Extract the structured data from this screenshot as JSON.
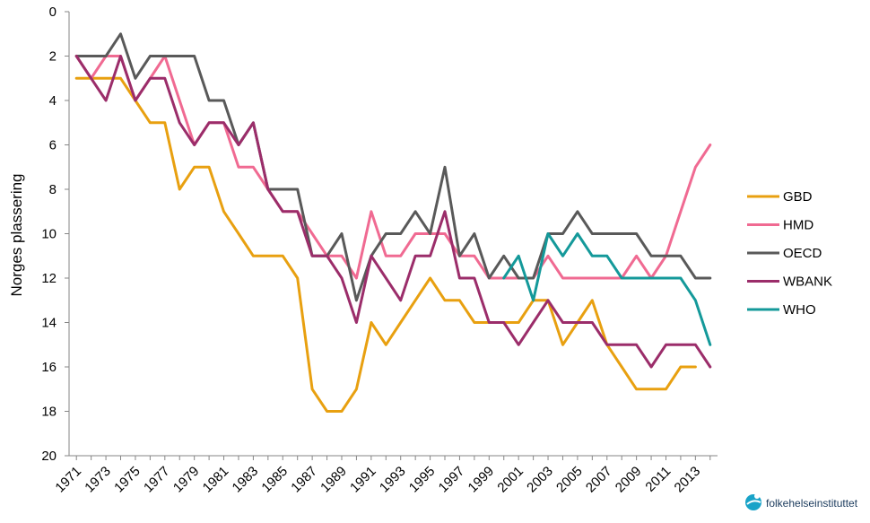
{
  "chart_data": {
    "type": "line",
    "ylabel": "Norges plassering",
    "xlabel": "",
    "y_inverted": true,
    "ylim": [
      0,
      20
    ],
    "yticks": [
      0,
      2,
      4,
      6,
      8,
      10,
      12,
      14,
      16,
      18,
      20
    ],
    "x": [
      1971,
      1972,
      1973,
      1974,
      1975,
      1976,
      1977,
      1978,
      1979,
      1980,
      1981,
      1982,
      1983,
      1984,
      1985,
      1986,
      1987,
      1988,
      1989,
      1990,
      1991,
      1992,
      1993,
      1994,
      1995,
      1996,
      1997,
      1998,
      1999,
      2000,
      2001,
      2002,
      2003,
      2004,
      2005,
      2006,
      2007,
      2008,
      2009,
      2010,
      2011,
      2012,
      2013,
      2014
    ],
    "xtick_labels": [
      "1971",
      "1973",
      "1975",
      "1977",
      "1979",
      "1981",
      "1983",
      "1985",
      "1987",
      "1989",
      "1991",
      "1993",
      "1995",
      "1997",
      "1999",
      "2001",
      "2003",
      "2005",
      "2007",
      "2009",
      "2011",
      "2013"
    ],
    "legend_position": "right",
    "series": [
      {
        "name": "GBD",
        "color": "#E8A010",
        "values": [
          3,
          3,
          3,
          3,
          4,
          5,
          5,
          8,
          7,
          7,
          9,
          10,
          11,
          11,
          11,
          12,
          17,
          18,
          18,
          17,
          14,
          15,
          14,
          13,
          12,
          13,
          13,
          14,
          14,
          14,
          14,
          13,
          13,
          15,
          14,
          13,
          15,
          16,
          17,
          17,
          17,
          16,
          16,
          null
        ]
      },
      {
        "name": "HMD",
        "color": "#F06A92",
        "values": [
          2,
          3,
          2,
          2,
          4,
          3,
          2,
          4,
          6,
          5,
          5,
          7,
          7,
          8,
          9,
          9,
          10,
          11,
          11,
          12,
          9,
          11,
          11,
          10,
          10,
          10,
          11,
          11,
          12,
          12,
          12,
          12,
          11,
          12,
          12,
          12,
          12,
          12,
          11,
          12,
          11,
          9,
          7,
          6
        ]
      },
      {
        "name": "OECD",
        "color": "#595959",
        "values": [
          2,
          2,
          2,
          1,
          3,
          2,
          2,
          2,
          2,
          4,
          4,
          6,
          5,
          8,
          8,
          8,
          11,
          11,
          10,
          13,
          11,
          10,
          10,
          9,
          10,
          7,
          11,
          10,
          12,
          11,
          12,
          12,
          10,
          10,
          9,
          10,
          10,
          10,
          10,
          11,
          11,
          11,
          12,
          12
        ]
      },
      {
        "name": "WBANK",
        "color": "#9B2D6A",
        "values": [
          2,
          3,
          4,
          2,
          4,
          3,
          3,
          5,
          6,
          5,
          5,
          6,
          5,
          8,
          9,
          9,
          11,
          11,
          12,
          14,
          11,
          12,
          13,
          11,
          11,
          9,
          12,
          12,
          14,
          14,
          15,
          14,
          13,
          14,
          14,
          14,
          15,
          15,
          15,
          16,
          15,
          15,
          15,
          16
        ]
      },
      {
        "name": "WHO",
        "color": "#14999A",
        "values": [
          null,
          null,
          null,
          null,
          null,
          null,
          null,
          null,
          null,
          null,
          null,
          null,
          null,
          null,
          null,
          null,
          null,
          null,
          null,
          null,
          null,
          null,
          null,
          null,
          null,
          null,
          null,
          null,
          null,
          12,
          11,
          13,
          10,
          11,
          10,
          11,
          11,
          12,
          12,
          12,
          12,
          12,
          13,
          15
        ]
      }
    ]
  },
  "logo": {
    "text": "folkehelseinstituttet"
  }
}
